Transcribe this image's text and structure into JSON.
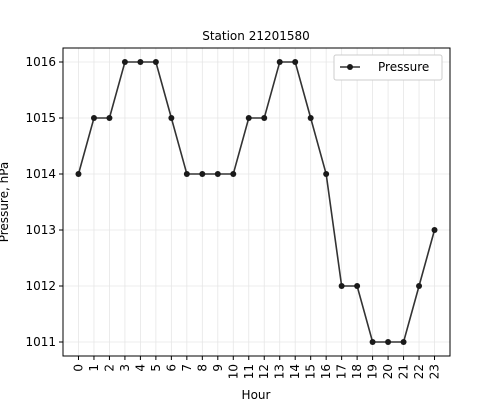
{
  "chart_data": {
    "type": "line",
    "title": "Station 21201580",
    "xlabel": "Hour",
    "ylabel": "Pressure, hPa",
    "x": [
      0,
      1,
      2,
      3,
      4,
      5,
      6,
      7,
      8,
      9,
      10,
      11,
      12,
      13,
      14,
      15,
      16,
      17,
      18,
      19,
      20,
      21,
      22,
      23
    ],
    "series": [
      {
        "name": "Pressure",
        "values": [
          1014,
          1015,
          1015,
          1016,
          1016,
          1016,
          1015,
          1014,
          1014,
          1014,
          1014,
          1015,
          1015,
          1016,
          1016,
          1015,
          1014,
          1012,
          1012,
          1011,
          1011,
          1011,
          1012,
          1013
        ]
      }
    ],
    "ylim": [
      1010.75,
      1016.25
    ],
    "xlim": [
      -1,
      24
    ],
    "yticks": [
      1011,
      1012,
      1013,
      1014,
      1015,
      1016
    ],
    "xticks": [
      0,
      1,
      2,
      3,
      4,
      5,
      6,
      7,
      8,
      9,
      10,
      11,
      12,
      13,
      14,
      15,
      16,
      17,
      18,
      19,
      20,
      21,
      22,
      23
    ],
    "grid": true,
    "legend_position": "top-right",
    "line_color": "#333333",
    "marker_color": "#1a1a1a"
  }
}
